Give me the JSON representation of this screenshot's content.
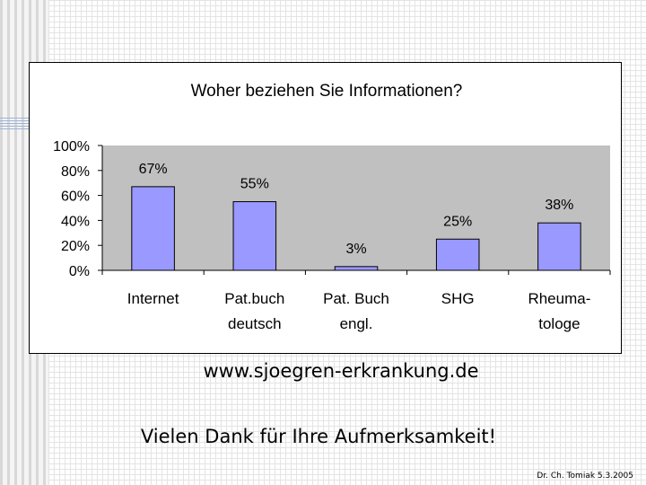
{
  "chart_data": {
    "type": "bar",
    "title": "Woher beziehen Sie Informationen?",
    "categories": [
      [
        "Internet"
      ],
      [
        "Pat.buch",
        "deutsch"
      ],
      [
        "Pat. Buch",
        "engl."
      ],
      [
        "SHG"
      ],
      [
        "Rheuma-",
        "tologe"
      ]
    ],
    "values": [
      67,
      55,
      3,
      25,
      38
    ],
    "data_labels": [
      "67%",
      "55%",
      "3%",
      "25%",
      "38%"
    ],
    "y_ticks": [
      "0%",
      "20%",
      "40%",
      "60%",
      "80%",
      "100%"
    ],
    "ylim": [
      0,
      100
    ],
    "grid": false,
    "legend": "none",
    "colors": {
      "bar": "#9999ff",
      "plot_area": "#c0c0c0"
    }
  },
  "footer": {
    "url": "www.sjoegren-erkrankung.de",
    "thanks": "Vielen Dank für Ihre Aufmerksamkeit!",
    "credit": "Dr. Ch. Tomiak 5.3.2005"
  }
}
